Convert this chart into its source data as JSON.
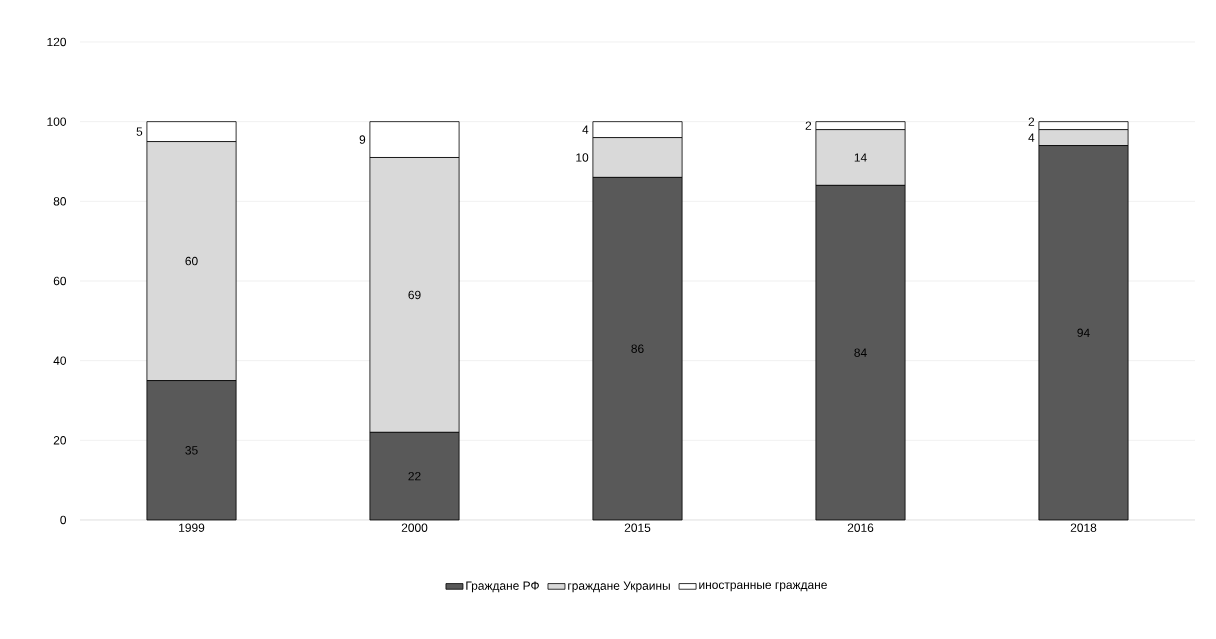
{
  "chart_data": {
    "type": "bar",
    "stacked": true,
    "categories": [
      "1999",
      "2000",
      "2015",
      "2016",
      "2018"
    ],
    "series": [
      {
        "name": "Граждане РФ",
        "color": "#595959",
        "values": [
          35,
          22,
          86,
          84,
          94
        ]
      },
      {
        "name": "граждане Украины",
        "color": "#d9d9d9",
        "values": [
          60,
          69,
          10,
          14,
          4
        ]
      },
      {
        "name": "иностранные граждане",
        "color": "#ffffff",
        "values": [
          5,
          9,
          4,
          2,
          2
        ]
      }
    ],
    "ylim": [
      0,
      120
    ],
    "yticks": [
      0,
      20,
      40,
      60,
      80,
      100,
      120
    ],
    "grid": "y",
    "legend": "bottom",
    "data_labels": true
  }
}
